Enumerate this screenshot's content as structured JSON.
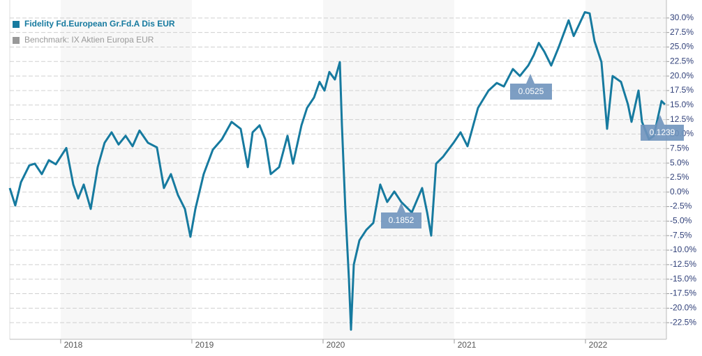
{
  "chart_data": {
    "type": "line",
    "x": [
      2017.612,
      2017.654,
      2017.697,
      2017.761,
      2017.803,
      2017.856,
      2017.91,
      2017.963,
      2018.043,
      2018.096,
      2018.133,
      2018.176,
      2018.229,
      2018.282,
      2018.335,
      2018.388,
      2018.441,
      2018.495,
      2018.548,
      2018.601,
      2018.665,
      2018.734,
      2018.787,
      2018.84,
      2018.894,
      2018.947,
      2018.989,
      2019.027,
      2019.09,
      2019.16,
      2019.229,
      2019.303,
      2019.372,
      2019.426,
      2019.463,
      2019.516,
      2019.559,
      2019.601,
      2019.665,
      2019.729,
      2019.771,
      2019.835,
      2019.878,
      2019.931,
      2019.973,
      2020.011,
      2020.048,
      2020.09,
      2020.128,
      2020.144,
      2020.17,
      2020.197,
      2020.213,
      2020.234,
      2020.277,
      2020.33,
      2020.383,
      2020.436,
      2020.489,
      2020.543,
      2020.596,
      2020.676,
      2020.755,
      2020.793,
      2020.824,
      2020.862,
      2020.915,
      2020.995,
      2021.048,
      2021.101,
      2021.181,
      2021.261,
      2021.324,
      2021.378,
      2021.447,
      2021.5,
      2021.564,
      2021.606,
      2021.644,
      2021.686,
      2021.739,
      2021.793,
      2021.872,
      2021.91,
      2021.952,
      2021.995,
      2022.032,
      2022.069,
      2022.122,
      2022.165,
      2022.207,
      2022.271,
      2022.324,
      2022.351,
      2022.404,
      2022.431,
      2022.484,
      2022.521,
      2022.58,
      2022.606
    ],
    "series": [
      {
        "name": "Fidelity Fd.European Gr.Fd.A Dis EUR",
        "color": "#167a9f",
        "values": [
          0.7,
          -2.3,
          1.7,
          4.6,
          4.9,
          3.1,
          5.5,
          4.8,
          7.6,
          1.3,
          -1.1,
          1.3,
          -2.9,
          4.3,
          8.5,
          10.3,
          8.2,
          9.7,
          7.9,
          10.6,
          8.5,
          7.7,
          0.7,
          3.1,
          -0.5,
          -2.9,
          -7.7,
          -2.9,
          3.1,
          7.3,
          9.1,
          12.1,
          10.9,
          4.3,
          10.3,
          11.5,
          9.1,
          3.1,
          4.3,
          9.7,
          4.9,
          11.5,
          14.5,
          16.3,
          19.0,
          17.5,
          20.7,
          19.4,
          22.4,
          11.5,
          -2.9,
          -14.9,
          -23.7,
          -12.5,
          -8.3,
          -6.5,
          -5.3,
          1.3,
          -1.7,
          0.1,
          -1.7,
          -3.5,
          0.7,
          -3.5,
          -7.5,
          4.9,
          6.1,
          8.5,
          10.3,
          7.9,
          14.5,
          17.5,
          18.8,
          18.2,
          21.2,
          20.0,
          21.8,
          23.6,
          25.7,
          24.2,
          21.8,
          24.8,
          29.6,
          26.9,
          28.9,
          31.0,
          30.8,
          26.0,
          22.4,
          10.9,
          20.0,
          19.0,
          15.1,
          12.1,
          17.5,
          12.1,
          9.1,
          9.7,
          15.7,
          15.1
        ]
      },
      {
        "name": "Benchmark: IX Aktien Europa EUR",
        "color": "#999999",
        "values": [
          null,
          null,
          null,
          null,
          null,
          null,
          null,
          null,
          null,
          null,
          null,
          null,
          null,
          null,
          null,
          null,
          null,
          null,
          null,
          null,
          null,
          null,
          null,
          null,
          null,
          null,
          null,
          null,
          null,
          null,
          null,
          null,
          null,
          null,
          null,
          null,
          null,
          null,
          null,
          null,
          null,
          null,
          null,
          null,
          null,
          null,
          null,
          null,
          null,
          null,
          null,
          null,
          null,
          null,
          null,
          null,
          null,
          null,
          null,
          null,
          null,
          null,
          null,
          null,
          null,
          null,
          null,
          null,
          null,
          null,
          null,
          null,
          null,
          null,
          null,
          null,
          null,
          null,
          null,
          null,
          null,
          null,
          null,
          null,
          null,
          null,
          null,
          null,
          null,
          null,
          null,
          null,
          null,
          null,
          null,
          null,
          null,
          null,
          null,
          null
        ]
      }
    ],
    "xlim": [
      2017.612,
      2022.617
    ],
    "xticks": [
      2018,
      2019,
      2020,
      2021,
      2022
    ],
    "ylim": [
      -25,
      32.5
    ],
    "yticks": [
      {
        "value": -22.5,
        "label": "-22.5%"
      },
      {
        "value": -20,
        "label": "-20.0%"
      },
      {
        "value": -17.5,
        "label": "-17.5%"
      },
      {
        "value": -15,
        "label": "-15.0%"
      },
      {
        "value": -12.5,
        "label": "-12.5%"
      },
      {
        "value": -10,
        "label": "-10.0%"
      },
      {
        "value": -7.5,
        "label": "-7.5%"
      },
      {
        "value": -5,
        "label": "-5.0%"
      },
      {
        "value": -2.5,
        "label": "-2.5%"
      },
      {
        "value": 0,
        "label": "0.0%"
      },
      {
        "value": 2.5,
        "label": "2.5%"
      },
      {
        "value": 5,
        "label": "5.0%"
      },
      {
        "value": 7.5,
        "label": "7.5%"
      },
      {
        "value": 10,
        "label": "10.0%"
      },
      {
        "value": 12.5,
        "label": "12.5%"
      },
      {
        "value": 15,
        "label": "15.0%"
      },
      {
        "value": 17.5,
        "label": "17.5%"
      },
      {
        "value": 20,
        "label": "20.0%"
      },
      {
        "value": 22.5,
        "label": "22.5%"
      },
      {
        "value": 25,
        "label": "25.0%"
      },
      {
        "value": 27.5,
        "label": "27.5%"
      },
      {
        "value": 30,
        "label": "30.0%"
      }
    ],
    "grid": true,
    "legend": "top-left",
    "annotations": [
      "0.0525",
      "0.1852",
      "0.1239"
    ]
  }
}
